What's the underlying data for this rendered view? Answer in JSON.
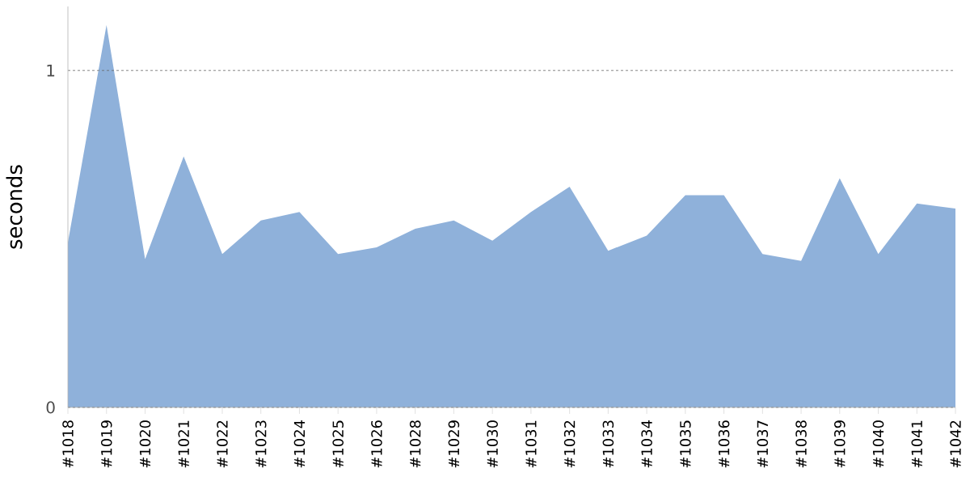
{
  "chart_data": {
    "type": "area",
    "ylabel": "seconds",
    "categories": [
      "#1018",
      "#1019",
      "#1020",
      "#1021",
      "#1022",
      "#1023",
      "#1024",
      "#1025",
      "#1026",
      "#1028",
      "#1029",
      "#1030",
      "#1031",
      "#1032",
      "#1033",
      "#1034",
      "#1035",
      "#1036",
      "#1037",
      "#1038",
      "#1039",
      "#1040",
      "#1041",
      "#1042"
    ],
    "series": [
      {
        "color": "#8fb1da",
        "values": [
          0.49,
          1.135,
          0.44,
          0.745,
          0.455,
          0.555,
          0.58,
          0.455,
          0.475,
          0.53,
          0.555,
          0.495,
          0.58,
          0.655,
          0.465,
          0.51,
          0.63,
          0.63,
          0.455,
          0.435,
          0.68,
          0.455,
          0.605,
          0.59
        ]
      }
    ],
    "ylim": [
      0,
      1.19
    ],
    "yticks": [
      0,
      1
    ],
    "grid": "y"
  }
}
